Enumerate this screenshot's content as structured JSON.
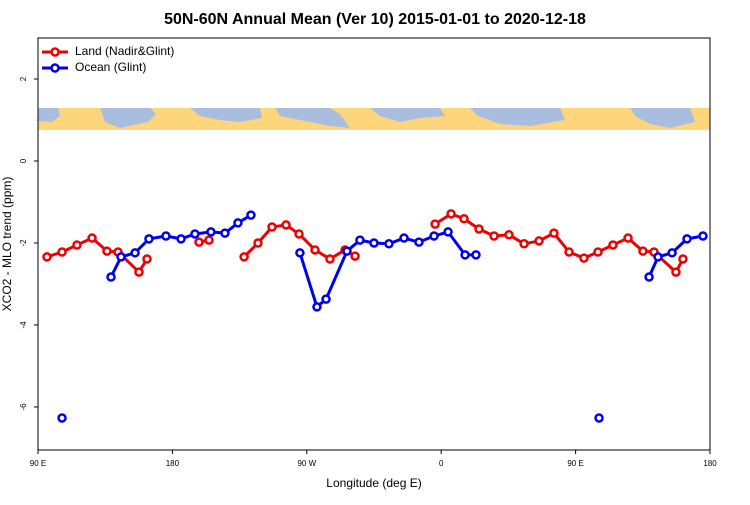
{
  "chart_data": {
    "type": "line",
    "title": "50N-60N Annual Mean (Ver 10)   2015-01-01 to 2020-12-18",
    "x_label": "Longitude (deg E)",
    "y_label": "XCO2 - MLO trend (ppm)",
    "xlim": [
      90,
      540
    ],
    "ylim": [
      -7.05,
      3
    ],
    "xticks": [
      {
        "value": 90,
        "label": "90 E"
      },
      180,
      {
        "value": 270,
        "label": "90 W"
      },
      {
        "value": 360,
        "label": "0"
      },
      {
        "value": 450,
        "label": "90 E"
      },
      {
        "value": 540,
        "label": "180"
      }
    ],
    "yticks": [
      -6,
      -4,
      -2,
      0,
      2
    ],
    "legend": "top-left",
    "series": [
      {
        "name": "Land (Nadir&Glint)",
        "color": "#ee0000",
        "x": [
          96.0,
          106.1,
          116.1,
          126.2,
          136.2,
          143.6,
          157.6,
          163.0,
          null,
          197.8,
          204.5,
          null,
          228.0,
          237.3,
          246.7,
          256.1,
          264.8,
          275.5,
          285.5,
          295.6,
          302.3,
          null,
          355.9,
          366.6,
          375.3,
          385.3,
          395.4,
          405.4,
          415.5,
          425.5,
          435.5,
          445.6,
          455.6,
          465.0,
          475.0,
          485.1,
          495.1,
          502.5,
          517.2,
          521.9
        ],
        "values": [
          -2.34,
          -2.22,
          -2.05,
          -1.88,
          -2.2,
          -2.22,
          -2.71,
          -2.39,
          null,
          -1.98,
          -1.93,
          null,
          -2.34,
          -2.0,
          -1.61,
          -1.56,
          -1.78,
          -2.17,
          -2.39,
          -2.17,
          -2.32,
          null,
          -1.54,
          -1.29,
          -1.41,
          -1.66,
          -1.83,
          -1.8,
          -2.02,
          -1.95,
          -1.76,
          -2.22,
          -2.37,
          -2.22,
          -2.05,
          -1.88,
          -2.2,
          -2.22,
          -2.71,
          -2.39
        ]
      },
      {
        "name": "Ocean (Glint)",
        "color": "#0000ee",
        "x": [
          106.1,
          null,
          138.9,
          145.6,
          155.0,
          164.3,
          175.7,
          185.8,
          195.1,
          205.8,
          215.2,
          223.9,
          232.6,
          null,
          265.4,
          276.8,
          282.9,
          296.9,
          305.6,
          315.0,
          325.0,
          335.1,
          345.1,
          355.2,
          364.6,
          376.0,
          383.3,
          null,
          465.7,
          null,
          499.2,
          505.2,
          514.6,
          524.6,
          535.3
        ],
        "values": [
          -6.27,
          null,
          -2.83,
          -2.34,
          -2.24,
          -1.9,
          -1.83,
          -1.9,
          -1.78,
          -1.73,
          -1.76,
          -1.51,
          -1.32,
          null,
          -2.24,
          -3.56,
          -3.37,
          -2.2,
          -1.93,
          -2.0,
          -2.02,
          -1.88,
          -1.98,
          -1.83,
          -1.73,
          -2.29,
          -2.29,
          null,
          -6.27,
          null,
          -2.83,
          -2.34,
          -2.24,
          -1.9,
          -1.83
        ]
      }
    ]
  }
}
